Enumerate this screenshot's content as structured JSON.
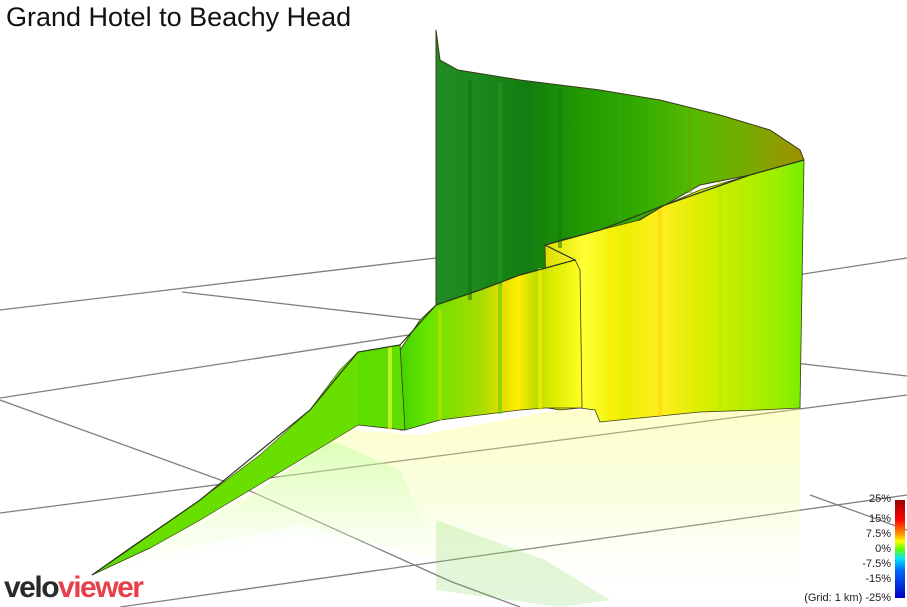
{
  "title": "Grand Hotel to Beachy Head",
  "logo": {
    "part1": "velo",
    "part2": "viewer"
  },
  "legend": {
    "labels": [
      "25%",
      "15%",
      "7.5%",
      "0%",
      "-7.5%",
      "-15%"
    ],
    "bottom_label": "-25%",
    "grid_note": "(Grid: 1 km)"
  },
  "colors": {
    "steep_up": "#9a0000",
    "moderate_up": "#ffff00",
    "flat": "#66ff00",
    "descent": "#1e8a1e",
    "grid": "#808080",
    "logo_accent": "#e8404a"
  }
}
